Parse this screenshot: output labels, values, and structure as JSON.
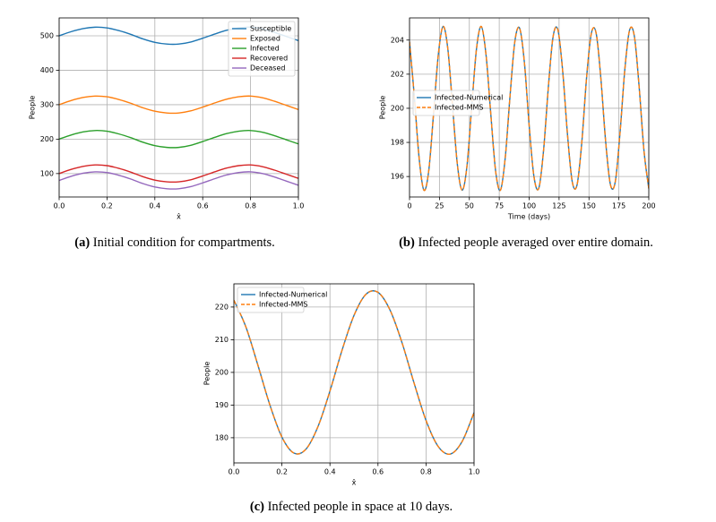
{
  "chart_data": [
    {
      "type": "line",
      "caption_label": "(a)",
      "caption": "Initial condition for compartments.",
      "xlabel": "x̂",
      "ylabel": "People",
      "x": [
        0,
        0.05,
        0.1,
        0.15,
        0.2,
        0.25,
        0.3,
        0.35,
        0.4,
        0.45,
        0.5,
        0.55,
        0.6,
        0.65,
        0.7,
        0.75,
        0.8,
        0.85,
        0.9,
        0.95,
        1
      ],
      "series": [
        {
          "name": "Susceptible",
          "color": "#1f77b4",
          "values": [
            500,
            512,
            521,
            525,
            523,
            515,
            504,
            491,
            481,
            476,
            476,
            482,
            493,
            505,
            516,
            523,
            525,
            520,
            510,
            498,
            486
          ]
        },
        {
          "name": "Exposed",
          "color": "#ff7f0e",
          "values": [
            300,
            312,
            321,
            325,
            323,
            315,
            304,
            291,
            281,
            276,
            276,
            282,
            293,
            305,
            316,
            323,
            325,
            320,
            310,
            298,
            286
          ]
        },
        {
          "name": "Infected",
          "color": "#2ca02c",
          "values": [
            200,
            212,
            221,
            225,
            223,
            215,
            204,
            191,
            181,
            176,
            176,
            182,
            193,
            205,
            216,
            223,
            225,
            220,
            210,
            198,
            186
          ]
        },
        {
          "name": "Recovered",
          "color": "#d62728",
          "values": [
            100,
            112,
            121,
            125,
            123,
            115,
            104,
            91,
            81,
            76,
            76,
            82,
            93,
            105,
            116,
            123,
            125,
            120,
            110,
            98,
            86
          ]
        },
        {
          "name": "Deceased",
          "color": "#9467bd",
          "values": [
            80,
            92,
            101,
            105,
            103,
            95,
            84,
            71,
            61,
            56,
            56,
            62,
            73,
            85,
            96,
            103,
            105,
            100,
            90,
            78,
            66
          ]
        }
      ],
      "xlim": [
        0,
        1
      ],
      "ylim": [
        32,
        552
      ],
      "xticks": [
        {
          "value": 0,
          "label": "0.0"
        },
        0.2,
        0.4,
        0.6,
        0.8,
        {
          "value": 1,
          "label": "1.0"
        }
      ],
      "yticks": [
        100,
        200,
        300,
        400,
        500
      ],
      "grid": true,
      "legend": "upper right"
    },
    {
      "type": "line",
      "caption_label": "(b)",
      "caption": "Infected people averaged over entire domain.",
      "xlabel": "Time (days)",
      "ylabel": "People",
      "x": [
        0,
        4,
        8,
        12,
        16,
        20,
        24,
        28,
        32,
        36,
        40,
        44,
        48,
        52,
        56,
        60,
        64,
        68,
        72,
        76,
        80,
        84,
        88,
        92,
        96,
        100,
        104,
        108,
        112,
        116,
        120,
        124,
        128,
        132,
        136,
        140,
        144,
        148,
        152,
        156,
        160,
        164,
        168,
        172,
        176,
        180,
        184,
        188,
        192,
        196,
        200
      ],
      "series": [
        {
          "name": "Infected-Numerical",
          "color": "#1f77b4",
          "linestyle": "solid",
          "values": [
            203.9,
            200.7,
            197.1,
            195.2,
            196.3,
            199.6,
            203.1,
            204.8,
            203.5,
            200.1,
            196.7,
            195.2,
            196.6,
            200.1,
            203.5,
            204.8,
            203.1,
            199.6,
            196.3,
            195.2,
            197.1,
            200.7,
            203.9,
            204.7,
            202.7,
            199.0,
            196.0,
            195.3,
            197.5,
            201.2,
            204.2,
            204.6,
            202.2,
            198.5,
            195.7,
            195.5,
            198.0,
            201.8,
            204.4,
            204.4,
            201.7,
            198.0,
            195.5,
            195.7,
            198.6,
            202.3,
            204.6,
            204.2,
            201.2,
            197.5,
            195.3
          ]
        },
        {
          "name": "Infected-MMS",
          "color": "#ff7f0e",
          "linestyle": "dashed",
          "values": [
            203.9,
            200.7,
            197.1,
            195.2,
            196.3,
            199.6,
            203.1,
            204.8,
            203.5,
            200.1,
            196.7,
            195.2,
            196.6,
            200.1,
            203.5,
            204.8,
            203.1,
            199.6,
            196.3,
            195.2,
            197.1,
            200.7,
            203.9,
            204.7,
            202.7,
            199.0,
            196.0,
            195.3,
            197.5,
            201.2,
            204.2,
            204.6,
            202.2,
            198.5,
            195.7,
            195.5,
            198.0,
            201.8,
            204.4,
            204.4,
            201.7,
            198.0,
            195.5,
            195.7,
            198.6,
            202.3,
            204.6,
            204.2,
            201.2,
            197.5,
            195.3
          ]
        }
      ],
      "xlim": [
        0,
        200
      ],
      "ylim": [
        194.8,
        205.3
      ],
      "xticks": [
        0,
        25,
        50,
        75,
        100,
        125,
        150,
        175,
        200
      ],
      "yticks": [
        196,
        198,
        200,
        202,
        204
      ],
      "grid": true,
      "legend": "center left"
    },
    {
      "type": "line",
      "caption_label": "(c)",
      "caption": "Infected people in space at 10 days.",
      "xlabel": "x̂",
      "ylabel": "People",
      "x": [
        0,
        0.05,
        0.1,
        0.15,
        0.2,
        0.25,
        0.3,
        0.35,
        0.4,
        0.45,
        0.5,
        0.55,
        0.6,
        0.65,
        0.7,
        0.75,
        0.8,
        0.85,
        0.9,
        0.95,
        1
      ],
      "series": [
        {
          "name": "Infected-Numerical",
          "color": "#1f77b4",
          "linestyle": "solid",
          "values": [
            222.1,
            213.9,
            202.2,
            190.0,
            180.2,
            175.3,
            176.5,
            183.4,
            194.3,
            206.7,
            217.4,
            223.9,
            224.5,
            219.1,
            209.1,
            196.8,
            185.3,
            177.4,
            175.0,
            178.8,
            187.7
          ]
        },
        {
          "name": "Infected-MMS",
          "color": "#ff7f0e",
          "linestyle": "dashed",
          "values": [
            222.1,
            213.9,
            202.2,
            190.0,
            180.2,
            175.3,
            176.5,
            183.4,
            194.3,
            206.7,
            217.4,
            223.9,
            224.5,
            219.1,
            209.1,
            196.8,
            185.3,
            177.4,
            175.0,
            178.8,
            187.7
          ]
        }
      ],
      "xlim": [
        0,
        1
      ],
      "ylim": [
        172.3,
        227.1
      ],
      "xticks": [
        {
          "value": 0,
          "label": "0.0"
        },
        0.2,
        0.4,
        0.6,
        0.8,
        {
          "value": 1,
          "label": "1.0"
        }
      ],
      "yticks": [
        180,
        190,
        200,
        210,
        220
      ],
      "grid": true,
      "legend": "upper left"
    }
  ]
}
